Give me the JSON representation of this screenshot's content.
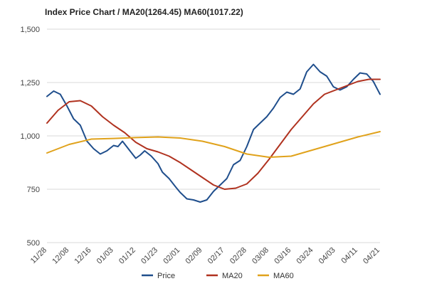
{
  "chart_data": {
    "type": "line",
    "title": "Index Price Chart / MA20(1264.45) MA60(1017.22)",
    "xlabel": "",
    "ylabel": "",
    "ylim": [
      500,
      1500
    ],
    "yticks": [
      "1,500",
      "1,250",
      "1,000",
      "750",
      "500"
    ],
    "ytick_values": [
      1500,
      1250,
      1000,
      750,
      500
    ],
    "xticks": [
      "11/28",
      "12/08",
      "12/16",
      "01/03",
      "01/12",
      "01/23",
      "02/01",
      "02/09",
      "02/17",
      "02/28",
      "03/08",
      "03/16",
      "03/24",
      "04/03",
      "04/11",
      "04/21"
    ],
    "grid": true,
    "legend_position": "bottom",
    "series": [
      {
        "name": "Price",
        "color": "#1f4e8c",
        "x": [
          0,
          0.3,
          0.6,
          0.9,
          1.2,
          1.5,
          1.8,
          2.1,
          2.4,
          2.7,
          3.0,
          3.2,
          3.4,
          3.7,
          4.0,
          4.2,
          4.4,
          4.7,
          5.0,
          5.2,
          5.5,
          5.8,
          6.0,
          6.3,
          6.6,
          6.9,
          7.2,
          7.5,
          7.8,
          8.1,
          8.4,
          8.7,
          9.0,
          9.3,
          9.6,
          9.9,
          10.2,
          10.5,
          10.8,
          11.1,
          11.4,
          11.7,
          12.0,
          12.3,
          12.6,
          12.9,
          13.2,
          13.5,
          13.8,
          14.1,
          14.4,
          14.7,
          15.0
        ],
        "values": [
          1185,
          1210,
          1195,
          1140,
          1080,
          1050,
          975,
          940,
          915,
          930,
          955,
          950,
          975,
          935,
          895,
          910,
          930,
          905,
          870,
          830,
          800,
          760,
          735,
          705,
          700,
          690,
          700,
          740,
          770,
          800,
          865,
          885,
          950,
          1030,
          1060,
          1090,
          1130,
          1180,
          1205,
          1195,
          1220,
          1300,
          1335,
          1300,
          1280,
          1230,
          1215,
          1230,
          1265,
          1295,
          1290,
          1255,
          1195
        ]
      },
      {
        "name": "MA20",
        "color": "#b0321f",
        "x": [
          0,
          0.5,
          1.0,
          1.5,
          2.0,
          2.5,
          3.0,
          3.5,
          4.0,
          4.5,
          5.0,
          5.5,
          6.0,
          6.5,
          7.0,
          7.5,
          8.0,
          8.5,
          9.0,
          9.5,
          10.0,
          10.5,
          11.0,
          11.5,
          12.0,
          12.5,
          13.0,
          13.5,
          14.0,
          14.5,
          15.0
        ],
        "values": [
          1060,
          1120,
          1160,
          1165,
          1140,
          1090,
          1050,
          1015,
          970,
          940,
          925,
          905,
          875,
          840,
          805,
          770,
          750,
          755,
          775,
          825,
          890,
          960,
          1030,
          1090,
          1150,
          1195,
          1215,
          1235,
          1255,
          1265,
          1265
        ]
      },
      {
        "name": "MA60",
        "color": "#e0a21b",
        "x": [
          0,
          1,
          2,
          3,
          4,
          5,
          6,
          7,
          8,
          9,
          10,
          11,
          12,
          13,
          14,
          15
        ],
        "values": [
          920,
          960,
          985,
          988,
          992,
          995,
          990,
          975,
          950,
          915,
          900,
          905,
          935,
          965,
          995,
          1020
        ]
      }
    ]
  }
}
